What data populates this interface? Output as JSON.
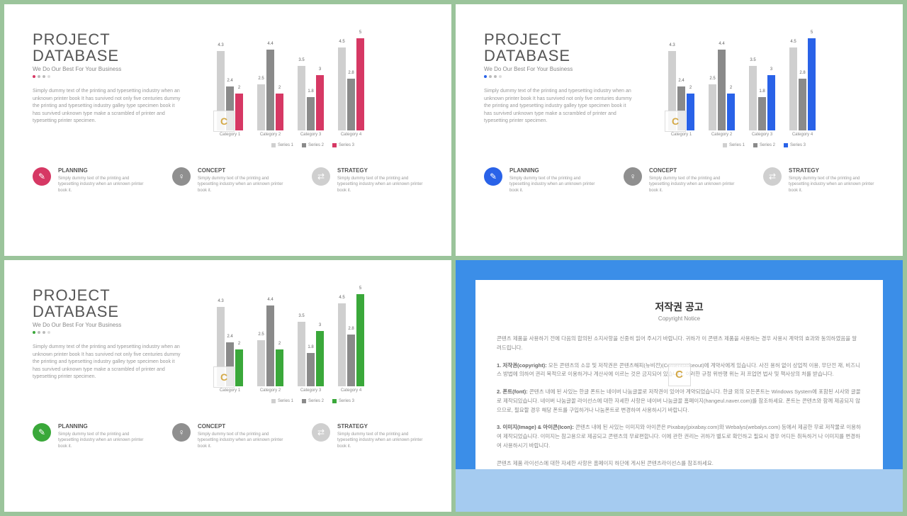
{
  "slides": [
    {
      "accent": "#d63864",
      "series3": "#d63864",
      "planning_icon": "#d63864"
    },
    {
      "accent": "#2962e8",
      "series3": "#2962e8",
      "planning_icon": "#2962e8"
    },
    {
      "accent": "#3aa83a",
      "series3": "#3aa83a",
      "planning_icon": "#3aa83a"
    }
  ],
  "common": {
    "title_line1": "PROJECT",
    "title_line2": "DATABASE",
    "subtitle": "We Do Our Best For Your Business",
    "body": "Simply dummy text of the printing and typesetting industry when an unknown printer book It has survived not only five centuries dummy the printing and typesetting industry galley type specimen book it has survived unknown type make a scrambled of printer and typesetting printer specimen.",
    "chart": {
      "type": "bar",
      "series_colors": {
        "s1": "#cfcfcf",
        "s2": "#8a8a8a"
      },
      "ymax": 5,
      "categories": [
        "Category 1",
        "Category 2",
        "Category 3",
        "Category 4"
      ],
      "data": [
        {
          "s1": 4.3,
          "s2": 2.4,
          "s3": 2
        },
        {
          "s1": 2.5,
          "s2": 4.4,
          "s3": 2
        },
        {
          "s1": 3.5,
          "s2": 1.8,
          "s3": 3
        },
        {
          "s1": 4.5,
          "s2": 2.8,
          "s3": 5
        }
      ],
      "legend": [
        "Series 1",
        "Series 2",
        "Series 3"
      ]
    },
    "icons": [
      {
        "title": "PLANNING",
        "bg": "accent",
        "glyph": "✎",
        "desc": "Simply dummy text of the printing and typesetting industry when an unknown printer book it."
      },
      {
        "title": "CONCEPT",
        "bg": "#8f8f8f",
        "glyph": "♀",
        "desc": "Simply dummy text of the printing and typesetting industry when an unknown printer book it."
      },
      {
        "title": "STRATEGY",
        "bg": "#cfcfcf",
        "glyph": "⇄",
        "desc": "Simply dummy text of the printing and typesetting industry when an unknown printer book it."
      }
    ]
  },
  "copyright": {
    "title": "저작권 공고",
    "subtitle": "Copyright Notice",
    "p1": "콘텐츠 제품을 사용하기 전에 다음의 합의된 소지사항을 신중히 읽어 주시기 바랍니다. 귀하가 이 콘텐츠 제품을 사용하는 경우 사용시 계약의 효과와 동의하였음을 알려드립니다.",
    "h1": "1. 저작권(copyright):",
    "t1": "모든 콘텐츠의 소유 및 저작권은 콘텐츠해피(뉴비전)(Contentstokeout)에 계약사에게 있습니다. 사진 용허 없이 상업적 이용, 무단전 재, 비즈니스 방법에 의하여 권리 목적으로 이용하거나 계산사에 이르는 것은 금지되어 있습니다. 이러한 규정 위반행 위는 저 프업면 법사 및 책사상의 처를 받습니다.",
    "h2": "2. 폰트(font):",
    "t2": "콘텐츠 내에 된 사있는 한글 폰트는 네이버 나눔글꼴로 저작권이 있어야 계약되었습니다. 한글 외의 모든폰트는 Windows System에 포함된 시사와 글꼴로 제작되있습니다. 네이버 나눔글꼴 라이선스에 대한 자세한 사항은 네이버 나눔글꼴 홈페이지(hangeul.naver.com)를 참조하세요. 폰트는 콘텐츠와 함께 제공되지 않으므로, 필요할 경우 해당 폰트를 구입하거나 나눔폰트로 변경하여 사용하시기 바랍니다.",
    "h3": "3. 이미지(Image) & 아이콘(Icon):",
    "t3": "콘텐츠 내에 된 사있는 이미지와 아이콘은 Pixabay(pixabay.com)와 Webalys(webalys.com) 등에서 제공한 무료 저작물로 이용하여 제작되었습니다. 이미지는 참고용으로 제공되고 콘텐츠의 무료편합니다. 이에 관한 권리는 귀하가 별도로 확인하고 필요시 경우 어디든 취득하거 나 이미지를 변경하여 사용하시기 바랍니다.",
    "p2": "콘텐츠 제품 라이선스에 대한 자세한 사항은 홈페이지 하단에 게시된 콘텐츠라이선스를 참조하세요."
  }
}
